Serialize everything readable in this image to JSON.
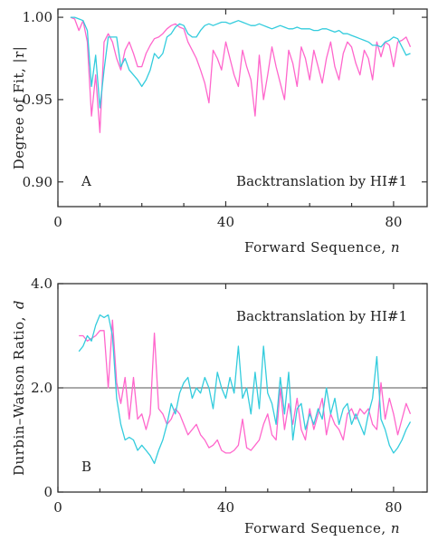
{
  "chart_data": [
    {
      "type": "line",
      "panel_label": "A",
      "annotation": "Backtranslation by HI#1",
      "xlabel": "Forward Sequence,",
      "xlabel_var": "n",
      "ylabel": "Degree of Fit, |r|",
      "xlim": [
        0,
        88
      ],
      "ylim": [
        0.885,
        1.005
      ],
      "xticks": [
        0,
        40,
        80
      ],
      "yticks": [
        0.9,
        0.95,
        1.0
      ],
      "ytick_labels": [
        "0.90",
        "0.95",
        "1.00"
      ],
      "series": [
        {
          "color": "#ff66cc",
          "x": [
            3,
            4,
            5,
            6,
            7,
            8,
            9,
            10,
            11,
            12,
            13,
            14,
            15,
            16,
            17,
            18,
            19,
            20,
            21,
            22,
            23,
            24,
            25,
            26,
            27,
            28,
            29,
            30,
            31,
            32,
            33,
            34,
            35,
            36,
            37,
            38,
            39,
            40,
            41,
            42,
            43,
            44,
            45,
            46,
            47,
            48,
            49,
            50,
            51,
            52,
            53,
            54,
            55,
            56,
            57,
            58,
            59,
            60,
            61,
            62,
            63,
            64,
            65,
            66,
            67,
            68,
            69,
            70,
            71,
            72,
            73,
            74,
            75,
            76,
            77,
            78,
            79,
            80,
            81,
            82,
            83,
            84
          ],
          "y": [
            1.0,
            0.999,
            0.992,
            0.998,
            0.985,
            0.94,
            0.965,
            0.93,
            0.985,
            0.99,
            0.985,
            0.975,
            0.968,
            0.98,
            0.985,
            0.978,
            0.97,
            0.97,
            0.978,
            0.983,
            0.987,
            0.988,
            0.99,
            0.993,
            0.995,
            0.996,
            0.994,
            0.993,
            0.985,
            0.98,
            0.975,
            0.968,
            0.96,
            0.948,
            0.98,
            0.975,
            0.968,
            0.985,
            0.975,
            0.965,
            0.958,
            0.98,
            0.97,
            0.962,
            0.94,
            0.977,
            0.95,
            0.965,
            0.982,
            0.97,
            0.96,
            0.95,
            0.98,
            0.972,
            0.958,
            0.982,
            0.975,
            0.962,
            0.98,
            0.97,
            0.96,
            0.975,
            0.985,
            0.97,
            0.962,
            0.978,
            0.985,
            0.982,
            0.972,
            0.965,
            0.98,
            0.975,
            0.962,
            0.985,
            0.976,
            0.985,
            0.983,
            0.97,
            0.985,
            0.986,
            0.988,
            0.982
          ]
        },
        {
          "color": "#33ccdd",
          "x": [
            3,
            4,
            5,
            6,
            7,
            8,
            9,
            10,
            11,
            12,
            13,
            14,
            15,
            16,
            17,
            18,
            19,
            20,
            21,
            22,
            23,
            24,
            25,
            26,
            27,
            28,
            29,
            30,
            31,
            32,
            33,
            34,
            35,
            36,
            37,
            38,
            39,
            40,
            41,
            42,
            43,
            44,
            45,
            46,
            47,
            48,
            49,
            50,
            51,
            52,
            53,
            54,
            55,
            56,
            57,
            58,
            59,
            60,
            61,
            62,
            63,
            64,
            65,
            66,
            67,
            68,
            69,
            70,
            71,
            72,
            73,
            74,
            75,
            76,
            77,
            78,
            79,
            80,
            81,
            82,
            83,
            84
          ],
          "y": [
            1.0,
            1.0,
            0.999,
            0.998,
            0.992,
            0.958,
            0.977,
            0.945,
            0.968,
            0.988,
            0.988,
            0.988,
            0.97,
            0.975,
            0.968,
            0.965,
            0.962,
            0.958,
            0.962,
            0.968,
            0.978,
            0.975,
            0.978,
            0.988,
            0.99,
            0.994,
            0.996,
            0.995,
            0.99,
            0.988,
            0.988,
            0.992,
            0.995,
            0.996,
            0.995,
            0.996,
            0.997,
            0.997,
            0.996,
            0.997,
            0.998,
            0.997,
            0.996,
            0.995,
            0.995,
            0.996,
            0.995,
            0.994,
            0.993,
            0.994,
            0.995,
            0.994,
            0.993,
            0.993,
            0.994,
            0.993,
            0.993,
            0.993,
            0.992,
            0.992,
            0.993,
            0.993,
            0.992,
            0.991,
            0.992,
            0.99,
            0.99,
            0.989,
            0.988,
            0.987,
            0.986,
            0.985,
            0.983,
            0.983,
            0.982,
            0.985,
            0.986,
            0.988,
            0.987,
            0.982,
            0.977,
            0.978
          ]
        }
      ]
    },
    {
      "type": "line",
      "panel_label": "B",
      "annotation": "Backtranslation by HI#1",
      "xlabel": "Forward Sequence,",
      "xlabel_var": "n",
      "ylabel": "Durbin–Watson Ratio,",
      "ylabel_var": "d",
      "xlim": [
        0,
        88
      ],
      "ylim": [
        0,
        4.0
      ],
      "xticks": [
        0,
        40,
        80
      ],
      "yticks": [
        0,
        2.0,
        4.0
      ],
      "ytick_labels": [
        "0",
        "2.0",
        "4.0"
      ],
      "reference_line": 2.0,
      "series": [
        {
          "color": "#ff66cc",
          "x": [
            5,
            6,
            7,
            8,
            9,
            10,
            11,
            12,
            13,
            14,
            15,
            16,
            17,
            18,
            19,
            20,
            21,
            22,
            23,
            24,
            25,
            26,
            27,
            28,
            29,
            30,
            31,
            32,
            33,
            34,
            35,
            36,
            37,
            38,
            39,
            40,
            41,
            42,
            43,
            44,
            45,
            46,
            47,
            48,
            49,
            50,
            51,
            52,
            53,
            54,
            55,
            56,
            57,
            58,
            59,
            60,
            61,
            62,
            63,
            64,
            65,
            66,
            67,
            68,
            69,
            70,
            71,
            72,
            73,
            74,
            75,
            76,
            77,
            78,
            79,
            80,
            81,
            82,
            83,
            84
          ],
          "y": [
            3.0,
            3.0,
            2.9,
            2.95,
            3.0,
            3.1,
            3.1,
            2.0,
            3.3,
            2.1,
            1.7,
            2.2,
            1.4,
            2.2,
            1.4,
            1.5,
            1.2,
            1.5,
            3.05,
            1.6,
            1.5,
            1.3,
            1.4,
            1.6,
            1.5,
            1.3,
            1.1,
            1.2,
            1.3,
            1.1,
            1.0,
            0.85,
            0.9,
            1.0,
            0.8,
            0.75,
            0.75,
            0.8,
            0.9,
            1.4,
            0.85,
            0.8,
            0.9,
            1.0,
            1.3,
            1.5,
            1.1,
            1.0,
            2.0,
            1.2,
            1.7,
            1.3,
            1.8,
            1.2,
            1.0,
            1.6,
            1.2,
            1.5,
            1.8,
            1.1,
            1.5,
            1.3,
            1.2,
            1.0,
            1.5,
            1.6,
            1.4,
            1.6,
            1.5,
            1.6,
            1.3,
            1.2,
            2.1,
            1.4,
            1.8,
            1.5,
            1.1,
            1.4,
            1.7,
            1.5
          ]
        },
        {
          "color": "#33ccdd",
          "x": [
            5,
            6,
            7,
            8,
            9,
            10,
            11,
            12,
            13,
            14,
            15,
            16,
            17,
            18,
            19,
            20,
            21,
            22,
            23,
            24,
            25,
            26,
            27,
            28,
            29,
            30,
            31,
            32,
            33,
            34,
            35,
            36,
            37,
            38,
            39,
            40,
            41,
            42,
            43,
            44,
            45,
            46,
            47,
            48,
            49,
            50,
            51,
            52,
            53,
            54,
            55,
            56,
            57,
            58,
            59,
            60,
            61,
            62,
            63,
            64,
            65,
            66,
            67,
            68,
            69,
            70,
            71,
            72,
            73,
            74,
            75,
            76,
            77,
            78,
            79,
            80,
            81,
            82,
            83,
            84
          ],
          "y": [
            2.7,
            2.8,
            3.0,
            2.9,
            3.2,
            3.4,
            3.35,
            3.4,
            3.0,
            1.8,
            1.3,
            1.0,
            1.05,
            1.0,
            0.8,
            0.9,
            0.8,
            0.7,
            0.55,
            0.8,
            1.0,
            1.3,
            1.7,
            1.5,
            1.9,
            2.1,
            2.2,
            1.8,
            2.0,
            1.9,
            2.2,
            2.0,
            1.6,
            2.3,
            2.0,
            1.8,
            2.2,
            1.9,
            2.8,
            1.8,
            2.0,
            1.5,
            2.3,
            1.6,
            2.8,
            1.9,
            1.7,
            1.3,
            2.2,
            1.5,
            2.3,
            1.0,
            1.6,
            1.7,
            1.2,
            1.5,
            1.3,
            1.6,
            1.4,
            2.0,
            1.5,
            1.8,
            1.3,
            1.6,
            1.7,
            1.3,
            1.5,
            1.3,
            1.1,
            1.5,
            1.8,
            2.6,
            1.4,
            1.2,
            0.9,
            0.75,
            0.85,
            1.0,
            1.2,
            1.35
          ]
        }
      ]
    }
  ]
}
